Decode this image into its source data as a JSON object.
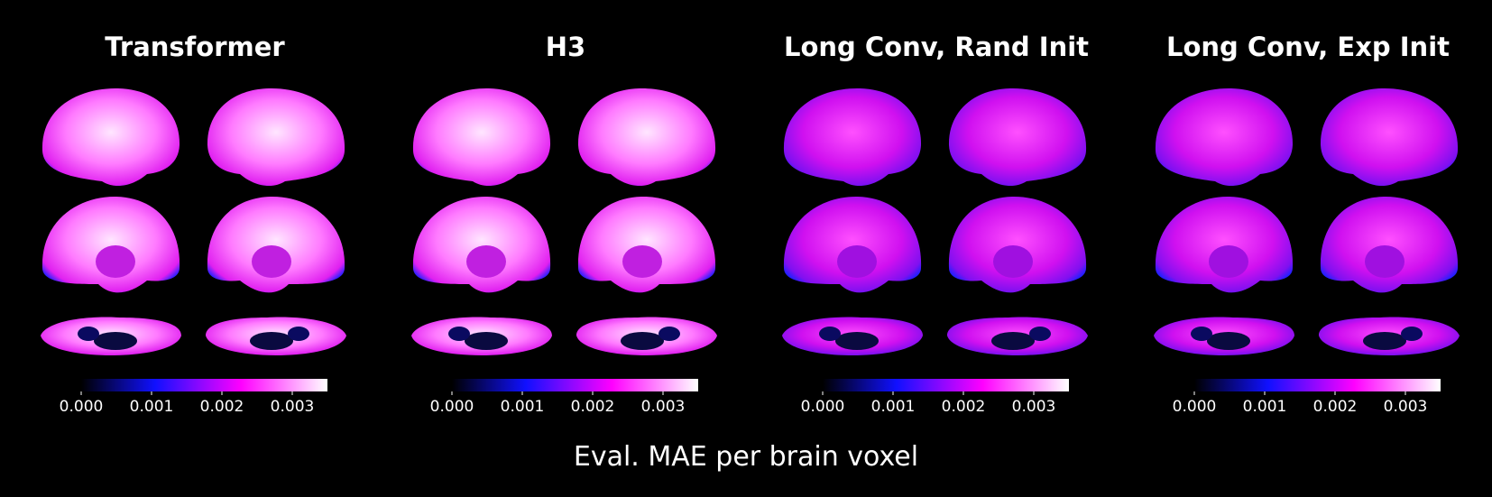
{
  "panels": [
    {
      "title": "Transformer",
      "colorbar": {
        "lim": [
          0,
          0.0035
        ],
        "ticks": [
          {
            "value": 0,
            "label": "0.000"
          },
          {
            "value": 0.001,
            "label": "0.001"
          },
          {
            "value": 0.002,
            "label": "0.002"
          },
          {
            "value": 0.003,
            "label": "0.003"
          }
        ]
      }
    },
    {
      "title": "H3",
      "colorbar": {
        "lim": [
          0,
          0.0035
        ],
        "ticks": [
          {
            "value": 0,
            "label": "0.000"
          },
          {
            "value": 0.001,
            "label": "0.001"
          },
          {
            "value": 0.002,
            "label": "0.002"
          },
          {
            "value": 0.003,
            "label": "0.003"
          }
        ]
      }
    },
    {
      "title": "Long Conv, Rand Init",
      "colorbar": {
        "lim": [
          0,
          0.0035
        ],
        "ticks": [
          {
            "value": 0,
            "label": "0.000"
          },
          {
            "value": 0.001,
            "label": "0.001"
          },
          {
            "value": 0.002,
            "label": "0.002"
          },
          {
            "value": 0.003,
            "label": "0.003"
          }
        ]
      }
    },
    {
      "title": "Long Conv, Exp Init",
      "colorbar": {
        "lim": [
          0,
          0.0035
        ],
        "ticks": [
          {
            "value": 0,
            "label": "0.000"
          },
          {
            "value": 0.001,
            "label": "0.001"
          },
          {
            "value": 0.002,
            "label": "0.002"
          },
          {
            "value": 0.003,
            "label": "0.003"
          }
        ]
      }
    }
  ],
  "caption": "Eval. MAE per brain voxel"
}
